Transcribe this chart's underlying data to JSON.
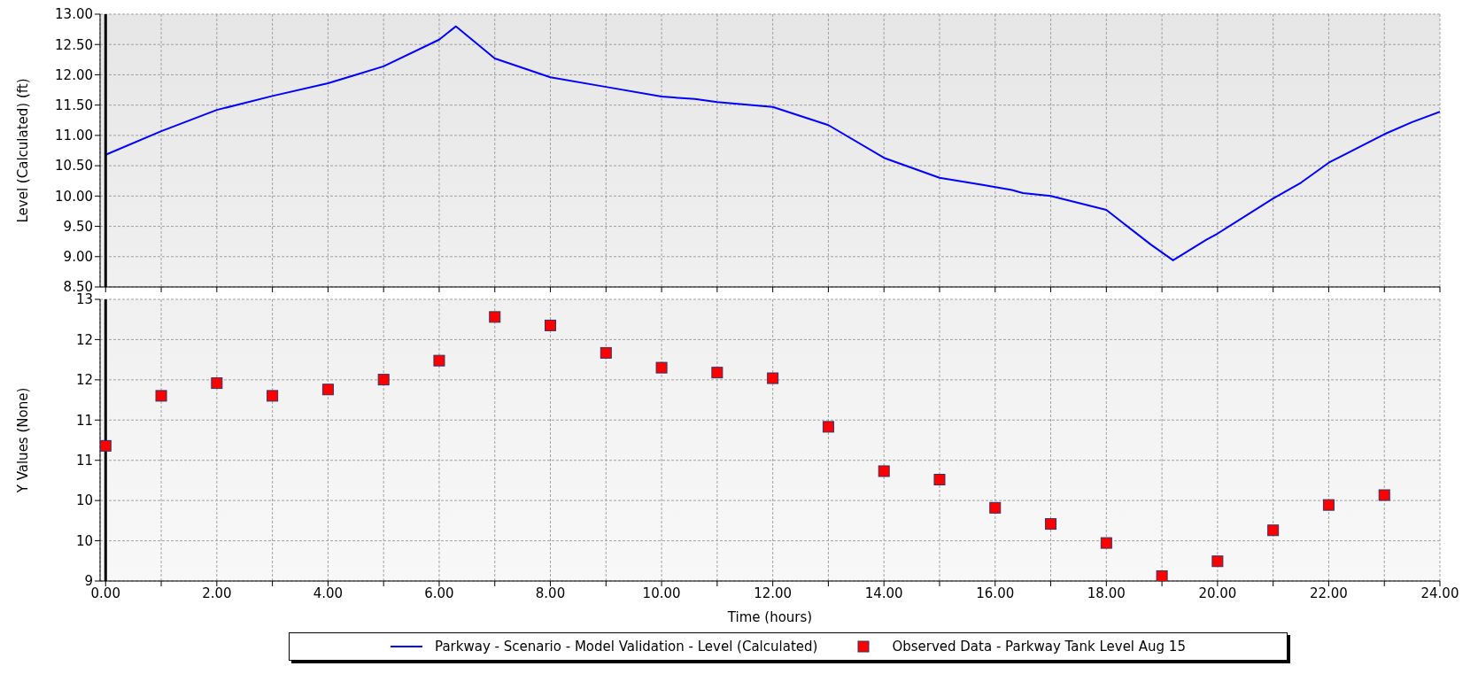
{
  "chart_data": [
    {
      "type": "line",
      "ylabel": "Level (Calculated) (ft)",
      "xlim": [
        -0.1,
        24
      ],
      "xticks": [
        {
          "value": 0,
          "label": null
        },
        {
          "value": 1,
          "label": null
        },
        {
          "value": 2,
          "label": null
        },
        {
          "value": 3,
          "label": null
        },
        {
          "value": 4,
          "label": null
        },
        {
          "value": 5,
          "label": null
        },
        {
          "value": 6,
          "label": null
        },
        {
          "value": 7,
          "label": null
        },
        {
          "value": 8,
          "label": null
        },
        {
          "value": 9,
          "label": null
        },
        {
          "value": 10,
          "label": null
        },
        {
          "value": 11,
          "label": null
        },
        {
          "value": 12,
          "label": null
        },
        {
          "value": 13,
          "label": null
        },
        {
          "value": 14,
          "label": null
        },
        {
          "value": 15,
          "label": null
        },
        {
          "value": 16,
          "label": null
        },
        {
          "value": 17,
          "label": null
        },
        {
          "value": 18,
          "label": null
        },
        {
          "value": 19,
          "label": null
        },
        {
          "value": 20,
          "label": null
        },
        {
          "value": 21,
          "label": null
        },
        {
          "value": 22,
          "label": null
        },
        {
          "value": 23,
          "label": null
        },
        {
          "value": 24,
          "label": null
        }
      ],
      "ylim": [
        8.5,
        13
      ],
      "yticks": [
        {
          "value": 8.5,
          "label": "8.50"
        },
        {
          "value": 9,
          "label": "9.00"
        },
        {
          "value": 9.5,
          "label": "9.50"
        },
        {
          "value": 10,
          "label": "10.00"
        },
        {
          "value": 10.5,
          "label": "10.50"
        },
        {
          "value": 11,
          "label": "11.00"
        },
        {
          "value": 11.5,
          "label": "11.50"
        },
        {
          "value": 12,
          "label": "12.00"
        },
        {
          "value": 12.5,
          "label": "12.50"
        },
        {
          "value": 13,
          "label": "13.00"
        }
      ],
      "tick_labels": "y",
      "grid": true,
      "legend": "bottom",
      "marker": "none",
      "ref_lines": [
        {
          "axis": "x",
          "value": 0,
          "color": "#000000"
        }
      ],
      "series": [
        {
          "name": "Parkway - Scenario - Model Validation - Level (Calculated)",
          "color": "#0000ff",
          "x": [
            0,
            1,
            2,
            3,
            4,
            4.5,
            5,
            6,
            6.3,
            7,
            8,
            9,
            10,
            10.6,
            11,
            12,
            13,
            14,
            15,
            15.8,
            16.3,
            16.5,
            17,
            18,
            18.8,
            19.2,
            19.8,
            20,
            21,
            21.5,
            22,
            23,
            23.5,
            24
          ],
          "values": [
            10.68,
            11.07,
            11.42,
            11.65,
            11.86,
            12.0,
            12.14,
            12.58,
            12.8,
            12.27,
            11.96,
            11.8,
            11.64,
            11.6,
            11.55,
            11.47,
            11.17,
            10.63,
            10.3,
            10.18,
            10.1,
            10.05,
            10.0,
            9.77,
            9.2,
            8.94,
            9.28,
            9.38,
            9.96,
            10.22,
            10.55,
            11.02,
            11.22,
            11.39
          ]
        }
      ]
    },
    {
      "type": "scatter",
      "xlabel": "Time (hours)",
      "ylabel": "Y Values (None)",
      "xlim": [
        -0.1,
        24
      ],
      "xticks": [
        {
          "value": 0,
          "label": "0.00"
        },
        {
          "value": 1,
          "label": null
        },
        {
          "value": 2,
          "label": "2.00"
        },
        {
          "value": 3,
          "label": null
        },
        {
          "value": 4,
          "label": "4.00"
        },
        {
          "value": 5,
          "label": null
        },
        {
          "value": 6,
          "label": "6.00"
        },
        {
          "value": 7,
          "label": null
        },
        {
          "value": 8,
          "label": "8.00"
        },
        {
          "value": 9,
          "label": null
        },
        {
          "value": 10,
          "label": "10.00"
        },
        {
          "value": 11,
          "label": null
        },
        {
          "value": 12,
          "label": "12.00"
        },
        {
          "value": 13,
          "label": null
        },
        {
          "value": 14,
          "label": "14.00"
        },
        {
          "value": 15,
          "label": null
        },
        {
          "value": 16,
          "label": "16.00"
        },
        {
          "value": 17,
          "label": null
        },
        {
          "value": 18,
          "label": "18.00"
        },
        {
          "value": 19,
          "label": null
        },
        {
          "value": 20,
          "label": "20.00"
        },
        {
          "value": 21,
          "label": null
        },
        {
          "value": 22,
          "label": "22.00"
        },
        {
          "value": 23,
          "label": null
        },
        {
          "value": 24,
          "label": "24.00"
        }
      ],
      "ylim": [
        9,
        13
      ],
      "yticks": [
        {
          "value": 9,
          "label": "9"
        },
        {
          "value": 9.571,
          "label": "10"
        },
        {
          "value": 10.143,
          "label": "10"
        },
        {
          "value": 10.714,
          "label": "11"
        },
        {
          "value": 11.286,
          "label": "11"
        },
        {
          "value": 11.857,
          "label": "12"
        },
        {
          "value": 12.429,
          "label": "12"
        },
        {
          "value": 13,
          "label": "13"
        }
      ],
      "grid": true,
      "legend": "bottom",
      "marker": "square",
      "ref_lines": [
        {
          "axis": "x",
          "value": 0,
          "color": "#000000"
        }
      ],
      "series": [
        {
          "name": "Observed Data - Parkway Tank Level Aug 15",
          "color": "#ff0000",
          "x": [
            0,
            1,
            2,
            3,
            4,
            5,
            6,
            7,
            8,
            9,
            10,
            11,
            12,
            13,
            14,
            15,
            16,
            17,
            18,
            19,
            20,
            21,
            22,
            23
          ],
          "values": [
            10.92,
            11.63,
            11.81,
            11.63,
            11.72,
            11.86,
            12.13,
            12.75,
            12.63,
            12.24,
            12.03,
            11.96,
            11.88,
            11.19,
            10.56,
            10.44,
            10.04,
            9.81,
            9.54,
            9.07,
            9.28,
            9.72,
            10.08,
            10.22
          ]
        }
      ]
    }
  ]
}
